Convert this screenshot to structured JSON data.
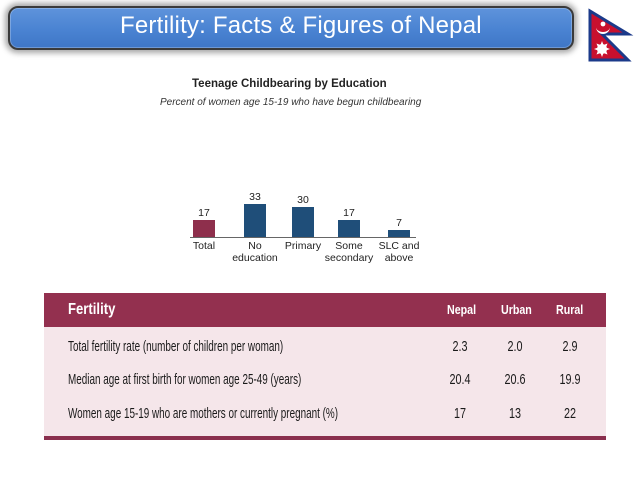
{
  "slide": {
    "title": "Fertility: Facts & Figures of Nepal",
    "flag_icon": "nepal-flag-icon"
  },
  "colors": {
    "title_bar": "#4a83d2",
    "total_bar": "#8e2f4c",
    "education_bars": "#1f4e79",
    "table_header": "#93304f",
    "table_body": "#f5e6ea"
  },
  "chart_data": {
    "type": "bar",
    "title": "Teenage Childbearing by Education",
    "subtitle": "Percent of women age 15-19 who have begun childbearing",
    "categories": [
      "Total",
      "No education",
      "Primary",
      "Some secondary",
      "SLC and above"
    ],
    "category_lines": [
      [
        "Total"
      ],
      [
        "No",
        "education"
      ],
      [
        "Primary"
      ],
      [
        "Some",
        "secondary"
      ],
      [
        "SLC and",
        "above"
      ]
    ],
    "values": [
      17,
      33,
      30,
      17,
      7
    ],
    "data_labels": [
      "17",
      "33",
      "30",
      "17",
      "7"
    ],
    "ylim": [
      0,
      35
    ],
    "grid": false,
    "legend": "none"
  },
  "table": {
    "header": {
      "label": "Fertility",
      "columns": [
        "Nepal",
        "Urban",
        "Rural"
      ]
    },
    "rows": [
      {
        "label": "Total fertility rate (number of children per woman)",
        "values": [
          "2.3",
          "2.0",
          "2.9"
        ]
      },
      {
        "label": "Median age at first birth for women age 25-49 (years)",
        "values": [
          "20.4",
          "20.6",
          "19.9"
        ]
      },
      {
        "label": "Women age 15-19 who are mothers or currently pregnant (%)",
        "values": [
          "17",
          "13",
          "22"
        ]
      }
    ]
  }
}
